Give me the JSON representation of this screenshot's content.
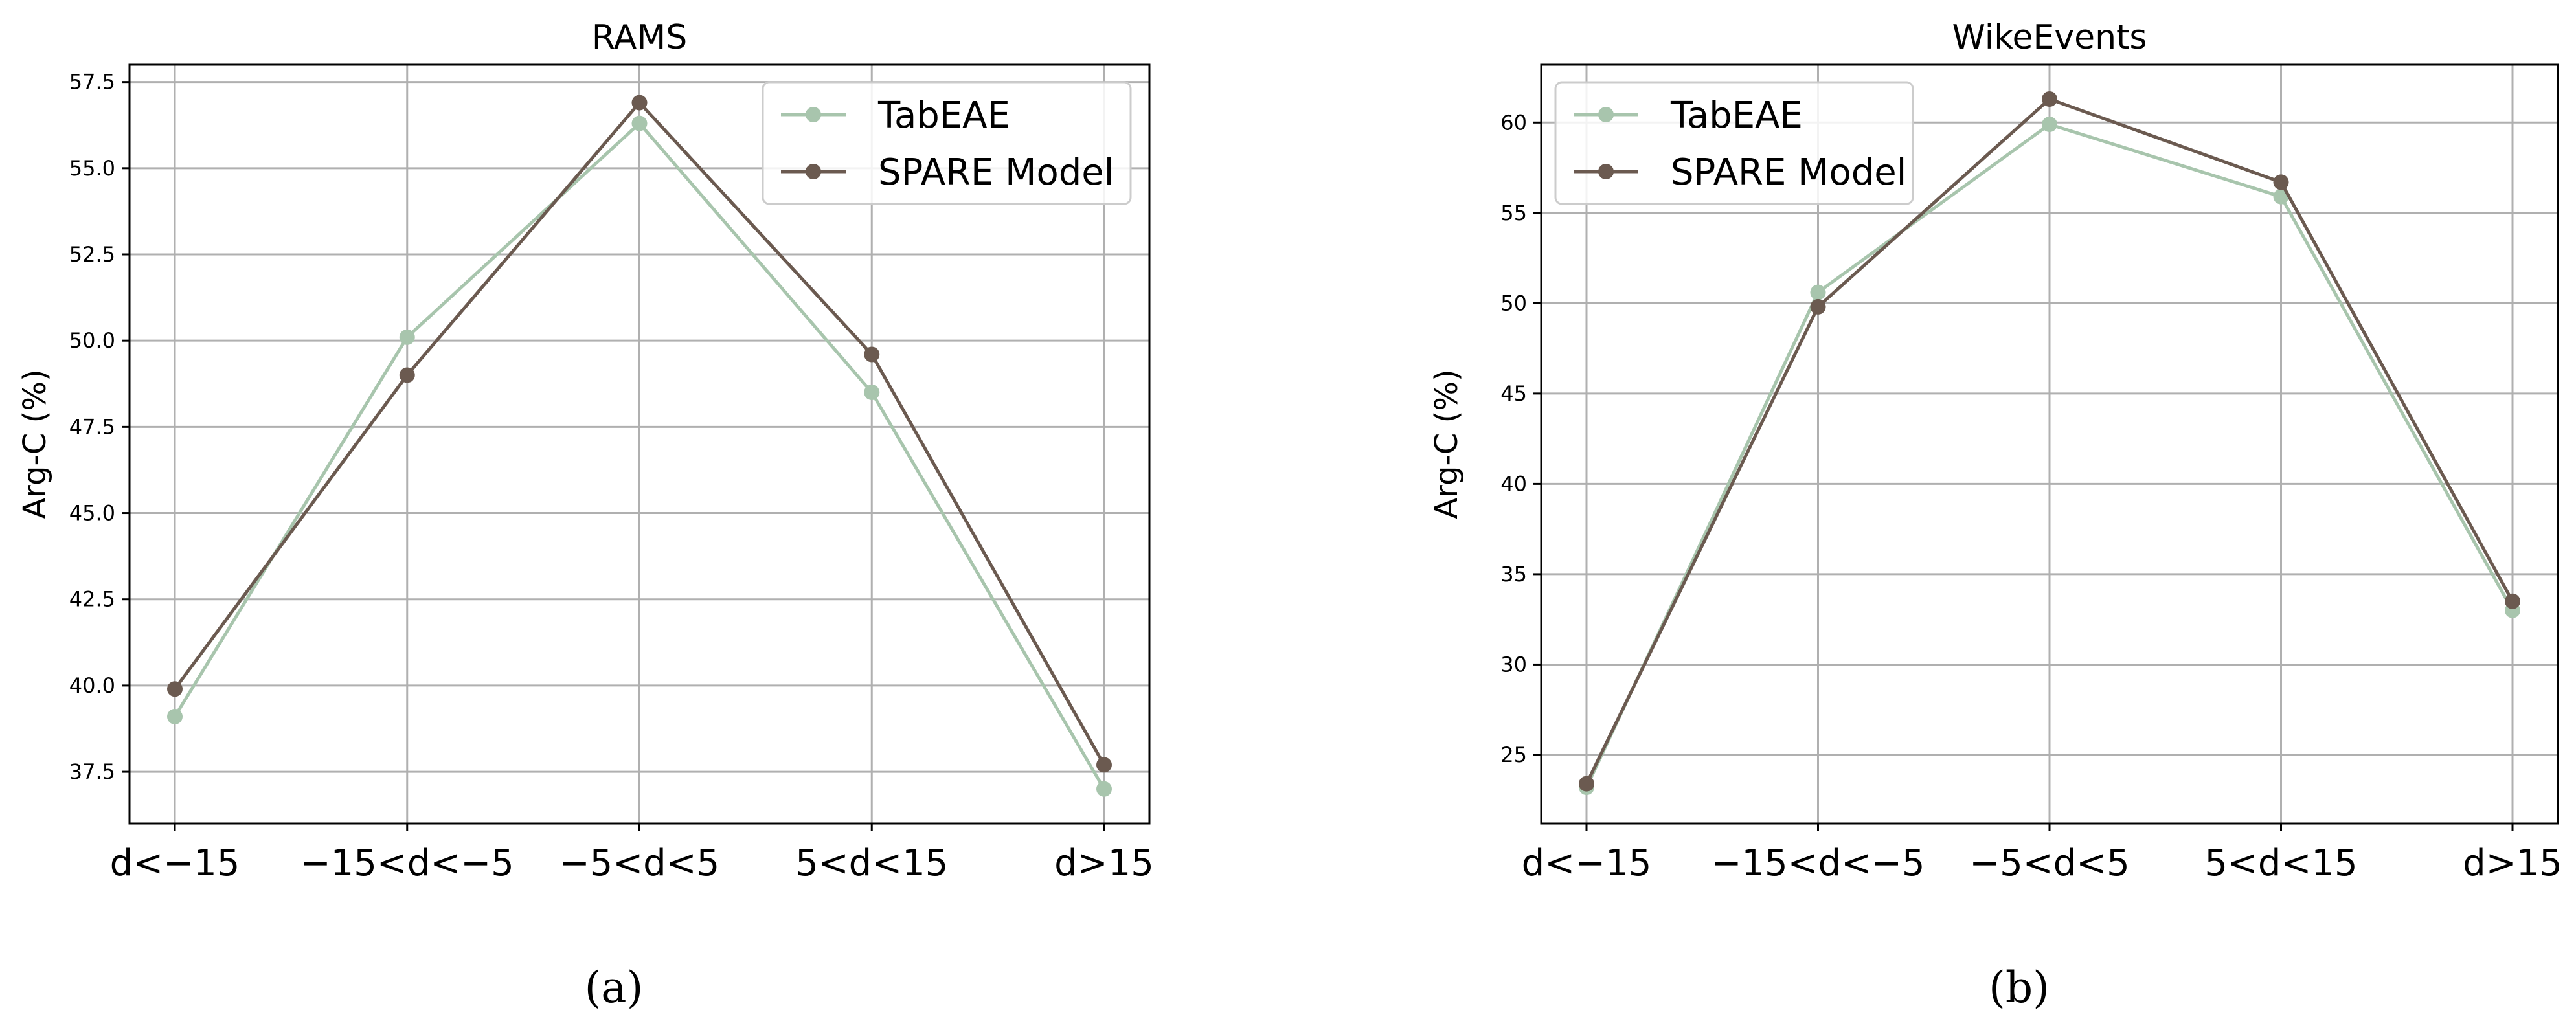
{
  "chart_data": [
    {
      "type": "line",
      "title": "RAMS",
      "xlabel": "",
      "ylabel": "Arg-C (%)",
      "categories": [
        "d<−15",
        "−15<d<−5",
        "−5<d<5",
        "5<d<15",
        "d>15"
      ],
      "ylim": [
        36.0,
        58.0
      ],
      "yticks": [
        "37.5",
        "40.0",
        "42.5",
        "45.0",
        "47.5",
        "50.0",
        "52.5",
        "55.0",
        "57.5"
      ],
      "grid": true,
      "legend_position": "top-right",
      "series": [
        {
          "name": "TabEAE",
          "color": "#a8c5ad",
          "values": [
            39.1,
            50.1,
            56.3,
            48.5,
            37.0
          ]
        },
        {
          "name": "SPARE Model",
          "color": "#6b5a50",
          "values": [
            39.9,
            49.0,
            56.9,
            49.6,
            37.7
          ]
        }
      ],
      "caption": "(a)"
    },
    {
      "type": "line",
      "title": "WikeEvents",
      "xlabel": "",
      "ylabel": "Arg-C (%)",
      "categories": [
        "d<−15",
        "−15<d<−5",
        "−5<d<5",
        "5<d<15",
        "d>15"
      ],
      "ylim": [
        21.2,
        63.2
      ],
      "yticks": [
        "25",
        "30",
        "35",
        "40",
        "45",
        "50",
        "55",
        "60"
      ],
      "grid": true,
      "legend_position": "top-left",
      "series": [
        {
          "name": "TabEAE",
          "color": "#a8c5ad",
          "values": [
            23.2,
            50.6,
            59.9,
            55.9,
            33.0
          ]
        },
        {
          "name": "SPARE Model",
          "color": "#6b5a50",
          "values": [
            23.4,
            49.8,
            61.3,
            56.7,
            33.5
          ]
        }
      ],
      "caption": "(b)"
    }
  ]
}
